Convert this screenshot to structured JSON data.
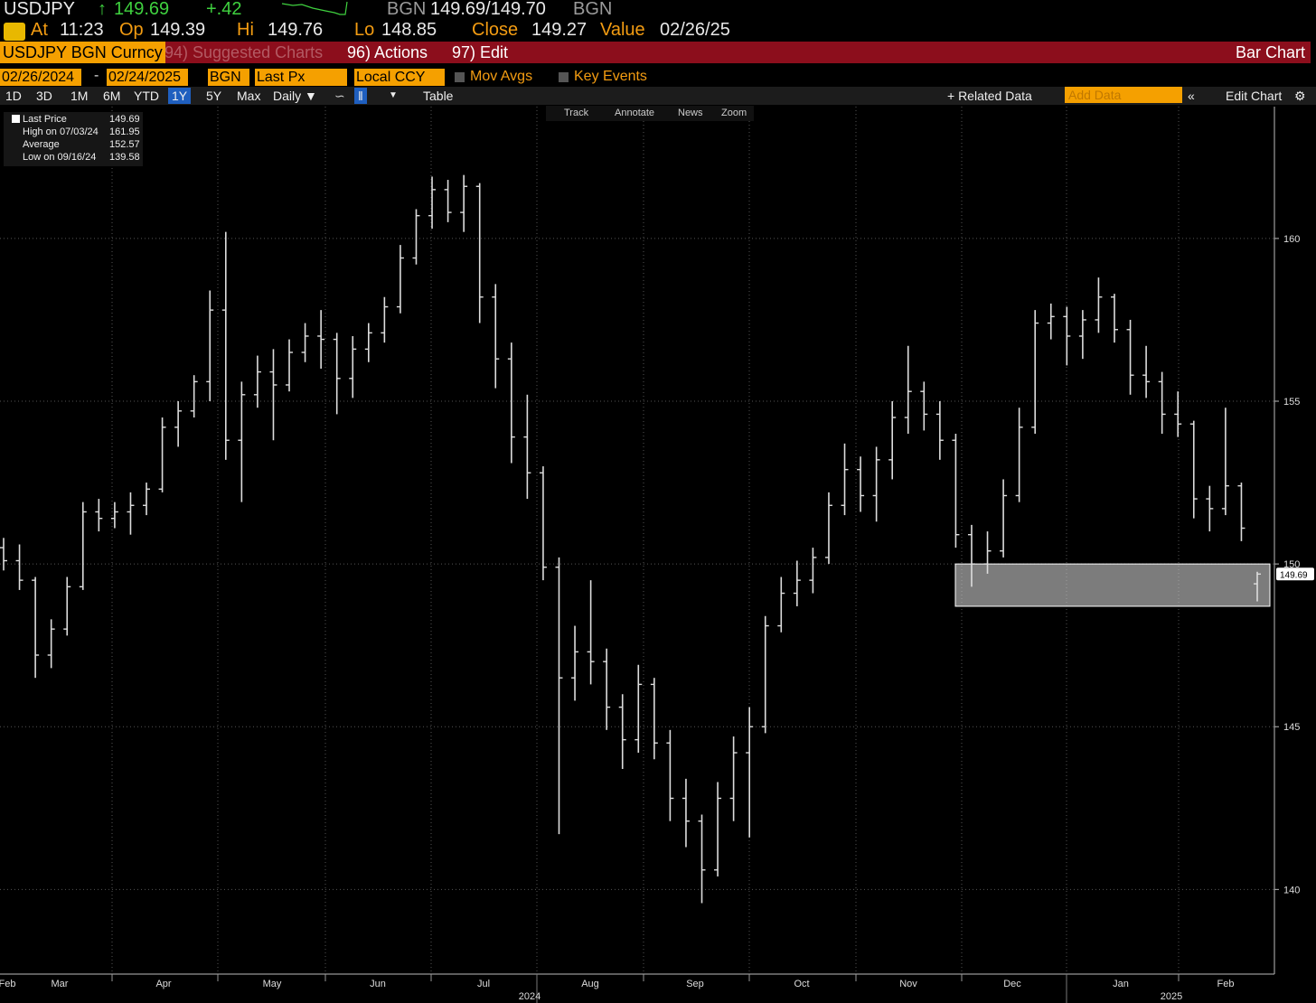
{
  "header": {
    "ticker": "USDJPY",
    "price": "149.69",
    "change": "+.42",
    "source": "BGN",
    "bid_ask": "149.69/149.70",
    "source2": "BGN",
    "at_label": "At",
    "time": "11:23",
    "open_label": "Op",
    "open": "149.39",
    "high_label": "Hi",
    "high": "149.76",
    "low_label": "Lo",
    "low": "148.85",
    "close_label": "Close",
    "close": "149.27",
    "value_label": "Value",
    "value_date": "02/26/25"
  },
  "menu": {
    "security": "USDJPY BGN Curncy",
    "suggested": "94) Suggested Charts",
    "actions": "96) Actions",
    "edit": "97) Edit",
    "chart_kind": "Bar Chart"
  },
  "settings": {
    "start": "02/26/2024",
    "end": "02/24/2025",
    "source": "BGN",
    "field": "Last Px",
    "currency": "Local CCY",
    "mov_avgs": "Mov Avgs",
    "key_events": "Key Events"
  },
  "toolbar": {
    "ranges": [
      "1D",
      "3D",
      "1M",
      "6M",
      "YTD",
      "1Y",
      "5Y",
      "Max"
    ],
    "selected": 5,
    "period": "Daily",
    "table": "Table",
    "related": "+ Related Data",
    "add_data": "Add Data",
    "edit_chart": "Edit Chart"
  },
  "chart_tools": [
    "Track",
    "Annotate",
    "News",
    "Zoom"
  ],
  "legend": [
    {
      "name": "Last Price",
      "value": "149.69"
    },
    {
      "name": "High on 07/03/24",
      "value": "161.95"
    },
    {
      "name": "Average",
      "value": "152.57"
    },
    {
      "name": "Low on 09/16/24",
      "value": "139.58"
    }
  ],
  "chart_data": {
    "type": "ohlc",
    "color": "#dddddd",
    "grid": true,
    "ylim": [
      137.4,
      164.05
    ],
    "yticks": [
      140,
      145,
      150,
      155,
      160
    ],
    "months": [
      "Feb",
      "Mar",
      "Apr",
      "May",
      "Jun",
      "Jul",
      "Aug",
      "Sep",
      "Oct",
      "Nov",
      "Dec",
      "Jan",
      "Feb"
    ],
    "years": [
      "2024",
      "2025"
    ],
    "highlight_band": [
      148.7,
      150.0
    ],
    "open": [
      150.5,
      150.1,
      149.5,
      147.2,
      148.0,
      149.3,
      151.6,
      151.4,
      151.6,
      151.8,
      152.3,
      154.2,
      154.7,
      155.6,
      157.8,
      153.8,
      155.2,
      155.9,
      155.5,
      156.5,
      157.0,
      156.9,
      155.7,
      156.6,
      157.1,
      157.9,
      159.4,
      160.7,
      161.5,
      160.8,
      161.6,
      158.2,
      156.3,
      153.9,
      152.8,
      149.9,
      146.5,
      147.3,
      147.0,
      145.6,
      144.6,
      146.3,
      144.5,
      142.8,
      142.1,
      140.6,
      142.8,
      144.2,
      145.0,
      148.1,
      149.1,
      149.5,
      150.2,
      151.8,
      152.9,
      152.1,
      153.2,
      154.5,
      155.3,
      154.6,
      153.8,
      150.9,
      150.0,
      150.4,
      152.1,
      154.2,
      157.4,
      157.6,
      157.0,
      157.5,
      158.2,
      157.2,
      155.8,
      155.6,
      154.6,
      154.3,
      152.0,
      151.7,
      152.4,
      149.39
    ],
    "high": [
      150.8,
      150.6,
      149.6,
      148.3,
      149.6,
      151.9,
      152.0,
      151.9,
      152.2,
      152.5,
      154.5,
      155.0,
      155.8,
      158.4,
      160.2,
      155.6,
      156.4,
      156.6,
      156.9,
      157.4,
      157.8,
      157.1,
      157.0,
      157.4,
      158.2,
      159.8,
      160.9,
      161.9,
      161.8,
      161.95,
      161.7,
      158.6,
      156.8,
      155.2,
      153.0,
      150.2,
      148.1,
      149.5,
      147.4,
      146.0,
      146.9,
      146.5,
      144.9,
      143.4,
      142.3,
      143.3,
      144.7,
      145.6,
      148.4,
      149.6,
      150.1,
      150.5,
      152.2,
      153.7,
      153.3,
      153.6,
      155.0,
      156.7,
      155.6,
      155.0,
      154.0,
      151.2,
      151.0,
      152.6,
      154.8,
      157.8,
      158.0,
      157.9,
      157.8,
      158.8,
      158.3,
      157.5,
      156.7,
      155.9,
      155.3,
      154.4,
      152.4,
      154.8,
      152.5,
      149.76
    ],
    "low": [
      149.8,
      149.2,
      146.5,
      146.8,
      147.8,
      149.2,
      151.0,
      151.1,
      150.9,
      151.5,
      152.2,
      153.6,
      154.5,
      155.0,
      153.2,
      151.9,
      154.8,
      153.8,
      155.3,
      156.2,
      156.0,
      154.6,
      155.1,
      156.2,
      156.8,
      157.7,
      159.2,
      160.3,
      160.5,
      160.2,
      157.4,
      155.4,
      153.1,
      152.0,
      149.5,
      141.7,
      145.8,
      146.3,
      144.9,
      143.7,
      144.2,
      144.0,
      142.1,
      141.3,
      139.58,
      140.4,
      142.1,
      141.6,
      144.8,
      147.9,
      148.7,
      149.1,
      150.0,
      151.5,
      151.6,
      151.3,
      152.6,
      154.0,
      154.1,
      153.2,
      150.5,
      149.3,
      149.7,
      150.2,
      151.9,
      154.0,
      156.9,
      156.1,
      156.3,
      157.1,
      156.8,
      155.2,
      155.1,
      154.0,
      153.9,
      151.4,
      151.0,
      151.5,
      150.7,
      148.85
    ],
    "close": [
      150.1,
      149.5,
      147.2,
      148.0,
      149.3,
      151.6,
      151.4,
      151.6,
      151.8,
      152.3,
      154.2,
      154.7,
      155.6,
      157.8,
      153.8,
      155.2,
      155.9,
      155.5,
      156.5,
      157.0,
      156.9,
      155.7,
      156.6,
      157.1,
      157.9,
      159.4,
      160.7,
      161.5,
      160.8,
      161.6,
      158.2,
      156.3,
      153.9,
      152.8,
      149.9,
      146.5,
      147.3,
      147.0,
      145.6,
      144.6,
      146.3,
      144.5,
      142.8,
      142.1,
      140.6,
      142.8,
      144.2,
      145.0,
      148.1,
      149.1,
      149.5,
      150.2,
      151.8,
      152.9,
      152.1,
      153.2,
      154.5,
      155.3,
      154.6,
      153.8,
      150.9,
      150.0,
      150.4,
      152.1,
      154.2,
      157.4,
      157.6,
      157.0,
      157.5,
      158.2,
      157.2,
      155.8,
      155.6,
      154.6,
      154.3,
      152.0,
      151.7,
      152.4,
      151.1,
      149.69
    ]
  }
}
